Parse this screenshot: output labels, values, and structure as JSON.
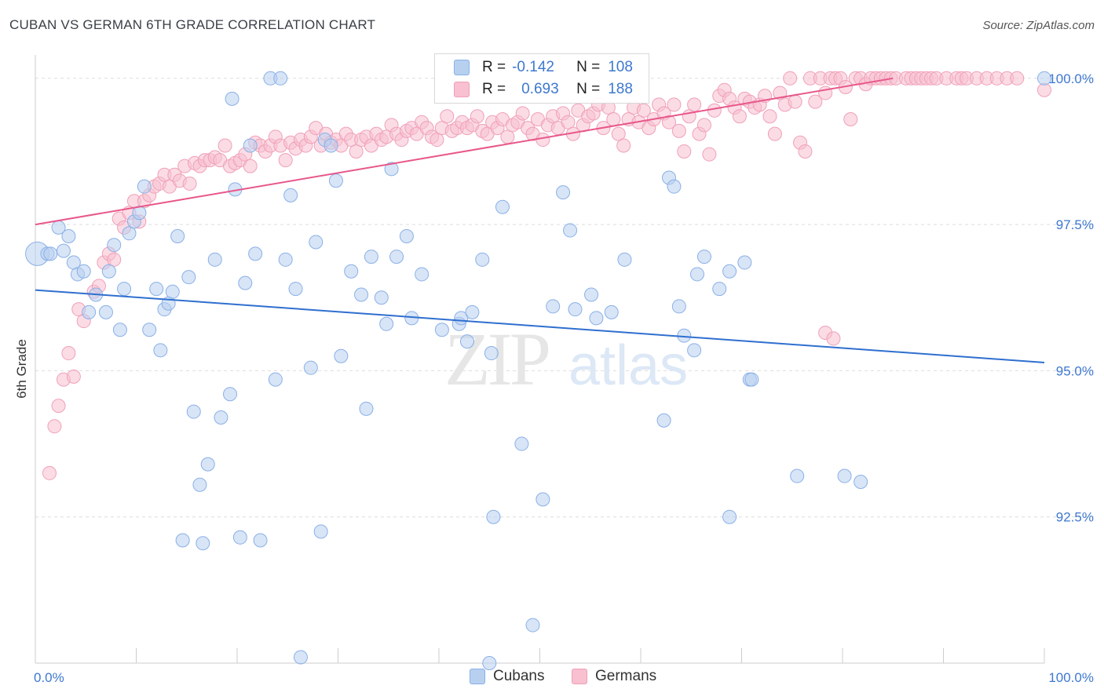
{
  "title": "CUBAN VS GERMAN 6TH GRADE CORRELATION CHART",
  "source": "Source: ZipAtlas.com",
  "watermark": {
    "zip": "ZIP",
    "atlas": "atlas"
  },
  "legend_stats": [
    {
      "r_label": "R =",
      "r_value": "-0.142",
      "n_label": "N =",
      "n_value": "108"
    },
    {
      "r_label": "R =",
      "r_value": "0.693",
      "n_label": "N =",
      "n_value": "188"
    }
  ],
  "bottom_legend": [
    "Cubans",
    "Germans"
  ],
  "colors": {
    "cubans_fill": "#b8d0f0",
    "cubans_stroke": "#8ab0e6",
    "cubans_line": "#2f6fcf",
    "germans_fill": "#f8c0d0",
    "germans_stroke": "#f0a0b8",
    "germans_line": "#e8578a",
    "tick_label": "#3e78d0",
    "grid": "#dddddd"
  },
  "chart_data": {
    "type": "scatter",
    "title": "CUBAN VS GERMAN 6TH GRADE CORRELATION CHART",
    "xlabel": "",
    "ylabel": "6th Grade",
    "xlim": [
      0,
      100
    ],
    "ylim": [
      90.0,
      100.4
    ],
    "x_tick_labels": [
      {
        "value": 0,
        "label": "0.0%"
      },
      {
        "value": 100,
        "label": "100.0%"
      }
    ],
    "y_tick_labels": [
      {
        "value": 100.0,
        "label": "100.0%"
      },
      {
        "value": 97.5,
        "label": "97.5%"
      },
      {
        "value": 95.0,
        "label": "95.0%"
      },
      {
        "value": 92.5,
        "label": "92.5%"
      }
    ],
    "grid": true,
    "legend_position": "top-center",
    "series": [
      {
        "name": "Cubans",
        "trend": {
          "x": [
            0,
            100
          ],
          "y": [
            96.38,
            95.14
          ]
        },
        "points": [
          [
            0.2,
            97.0
          ],
          [
            1.2,
            97.0
          ],
          [
            1.5,
            97.0
          ],
          [
            2.3,
            97.45
          ],
          [
            2.8,
            97.05
          ],
          [
            3.3,
            97.3
          ],
          [
            3.8,
            96.85
          ],
          [
            4.2,
            96.65
          ],
          [
            4.8,
            96.7
          ],
          [
            5.3,
            96.0
          ],
          [
            6.0,
            96.3
          ],
          [
            7.0,
            96.0
          ],
          [
            7.3,
            96.7
          ],
          [
            7.8,
            97.15
          ],
          [
            8.4,
            95.7
          ],
          [
            8.8,
            96.4
          ],
          [
            9.3,
            97.35
          ],
          [
            9.8,
            97.55
          ],
          [
            10.3,
            97.7
          ],
          [
            10.8,
            98.15
          ],
          [
            11.3,
            95.7
          ],
          [
            12.0,
            96.4
          ],
          [
            12.4,
            95.35
          ],
          [
            12.8,
            96.05
          ],
          [
            13.2,
            96.15
          ],
          [
            13.6,
            96.35
          ],
          [
            14.1,
            97.3
          ],
          [
            14.6,
            92.1
          ],
          [
            15.2,
            96.6
          ],
          [
            15.7,
            94.3
          ],
          [
            16.3,
            93.05
          ],
          [
            16.6,
            92.05
          ],
          [
            17.1,
            93.4
          ],
          [
            17.8,
            96.9
          ],
          [
            18.4,
            94.2
          ],
          [
            19.3,
            94.6
          ],
          [
            19.5,
            99.65
          ],
          [
            19.8,
            98.1
          ],
          [
            20.3,
            92.15
          ],
          [
            20.8,
            96.5
          ],
          [
            21.3,
            98.85
          ],
          [
            21.8,
            97.0
          ],
          [
            22.3,
            92.1
          ],
          [
            23.3,
            100.0
          ],
          [
            23.8,
            94.85
          ],
          [
            24.3,
            100.0
          ],
          [
            24.8,
            96.9
          ],
          [
            25.3,
            98.0
          ],
          [
            25.8,
            96.4
          ],
          [
            26.3,
            90.1
          ],
          [
            27.3,
            95.05
          ],
          [
            27.8,
            97.2
          ],
          [
            28.3,
            92.25
          ],
          [
            28.7,
            98.95
          ],
          [
            29.3,
            98.85
          ],
          [
            29.8,
            98.25
          ],
          [
            30.3,
            95.25
          ],
          [
            31.3,
            96.7
          ],
          [
            32.3,
            96.3
          ],
          [
            32.8,
            94.35
          ],
          [
            33.3,
            96.95
          ],
          [
            34.3,
            96.25
          ],
          [
            34.8,
            95.8
          ],
          [
            35.3,
            98.45
          ],
          [
            35.8,
            96.95
          ],
          [
            36.8,
            97.3
          ],
          [
            37.3,
            95.9
          ],
          [
            38.3,
            96.65
          ],
          [
            40.3,
            95.7
          ],
          [
            42.0,
            95.8
          ],
          [
            42.2,
            95.9
          ],
          [
            42.8,
            95.5
          ],
          [
            43.3,
            96.0
          ],
          [
            44.3,
            96.9
          ],
          [
            45.2,
            95.3
          ],
          [
            45.4,
            92.5
          ],
          [
            46.3,
            97.8
          ],
          [
            48.2,
            93.75
          ],
          [
            49.3,
            90.65
          ],
          [
            50.3,
            92.8
          ],
          [
            51.3,
            96.1
          ],
          [
            52.3,
            98.05
          ],
          [
            53.0,
            97.4
          ],
          [
            53.5,
            96.05
          ],
          [
            55.1,
            96.3
          ],
          [
            55.6,
            95.9
          ],
          [
            57.1,
            96.0
          ],
          [
            58.4,
            96.9
          ],
          [
            62.3,
            94.15
          ],
          [
            62.8,
            98.3
          ],
          [
            63.3,
            98.15
          ],
          [
            63.8,
            96.1
          ],
          [
            64.3,
            95.6
          ],
          [
            65.3,
            95.35
          ],
          [
            65.6,
            96.65
          ],
          [
            66.3,
            96.95
          ],
          [
            67.8,
            96.4
          ],
          [
            68.8,
            96.7
          ],
          [
            68.8,
            92.5
          ],
          [
            70.3,
            96.85
          ],
          [
            70.8,
            94.85
          ],
          [
            71.0,
            94.85
          ],
          [
            75.5,
            93.2
          ],
          [
            80.2,
            93.2
          ],
          [
            81.8,
            93.1
          ],
          [
            100.0,
            100.0
          ],
          [
            45.0,
            90.0
          ]
        ]
      },
      {
        "name": "Germans",
        "trend": {
          "x": [
            0,
            85
          ],
          "y": [
            97.5,
            100.0
          ]
        },
        "points": [
          [
            1.4,
            93.25
          ],
          [
            1.9,
            94.05
          ],
          [
            2.3,
            94.4
          ],
          [
            2.8,
            94.85
          ],
          [
            3.3,
            95.3
          ],
          [
            3.8,
            94.9
          ],
          [
            4.3,
            96.05
          ],
          [
            4.8,
            95.85
          ],
          [
            5.8,
            96.35
          ],
          [
            6.3,
            96.45
          ],
          [
            6.8,
            96.85
          ],
          [
            7.3,
            97.0
          ],
          [
            7.8,
            96.9
          ],
          [
            8.3,
            97.6
          ],
          [
            8.8,
            97.45
          ],
          [
            9.3,
            97.7
          ],
          [
            9.8,
            97.9
          ],
          [
            10.3,
            97.55
          ],
          [
            10.8,
            97.9
          ],
          [
            11.3,
            98.0
          ],
          [
            11.8,
            98.15
          ],
          [
            12.3,
            98.2
          ],
          [
            12.8,
            98.35
          ],
          [
            13.3,
            98.15
          ],
          [
            13.8,
            98.35
          ],
          [
            14.3,
            98.25
          ],
          [
            14.8,
            98.5
          ],
          [
            15.3,
            98.2
          ],
          [
            15.8,
            98.55
          ],
          [
            16.3,
            98.5
          ],
          [
            16.8,
            98.6
          ],
          [
            17.3,
            98.6
          ],
          [
            17.8,
            98.65
          ],
          [
            18.3,
            98.6
          ],
          [
            18.8,
            98.85
          ],
          [
            19.3,
            98.5
          ],
          [
            19.8,
            98.55
          ],
          [
            20.3,
            98.6
          ],
          [
            20.8,
            98.7
          ],
          [
            21.3,
            98.5
          ],
          [
            21.8,
            98.9
          ],
          [
            22.3,
            98.85
          ],
          [
            22.8,
            98.75
          ],
          [
            23.3,
            98.85
          ],
          [
            23.8,
            99.0
          ],
          [
            24.3,
            98.85
          ],
          [
            24.8,
            98.6
          ],
          [
            25.3,
            98.9
          ],
          [
            25.8,
            98.8
          ],
          [
            26.3,
            98.95
          ],
          [
            26.8,
            98.85
          ],
          [
            27.3,
            99.0
          ],
          [
            27.8,
            99.15
          ],
          [
            28.3,
            98.85
          ],
          [
            28.8,
            99.05
          ],
          [
            29.3,
            98.9
          ],
          [
            29.8,
            98.95
          ],
          [
            30.3,
            98.85
          ],
          [
            30.8,
            99.05
          ],
          [
            31.3,
            98.95
          ],
          [
            31.8,
            98.75
          ],
          [
            32.3,
            98.95
          ],
          [
            32.8,
            99.0
          ],
          [
            33.3,
            98.85
          ],
          [
            33.8,
            99.05
          ],
          [
            34.3,
            98.95
          ],
          [
            34.8,
            99.0
          ],
          [
            35.3,
            99.2
          ],
          [
            35.8,
            99.05
          ],
          [
            36.3,
            98.95
          ],
          [
            36.8,
            99.1
          ],
          [
            37.3,
            99.15
          ],
          [
            37.8,
            99.05
          ],
          [
            38.3,
            99.25
          ],
          [
            38.8,
            99.15
          ],
          [
            39.3,
            99.0
          ],
          [
            39.8,
            98.95
          ],
          [
            40.3,
            99.15
          ],
          [
            40.8,
            99.35
          ],
          [
            41.3,
            99.1
          ],
          [
            41.8,
            99.15
          ],
          [
            42.3,
            99.25
          ],
          [
            42.8,
            99.15
          ],
          [
            43.3,
            99.2
          ],
          [
            43.8,
            99.35
          ],
          [
            44.3,
            99.1
          ],
          [
            44.8,
            99.05
          ],
          [
            45.3,
            99.25
          ],
          [
            45.8,
            99.15
          ],
          [
            46.3,
            99.3
          ],
          [
            46.8,
            99.0
          ],
          [
            47.3,
            99.2
          ],
          [
            47.8,
            99.25
          ],
          [
            48.3,
            99.4
          ],
          [
            48.8,
            99.15
          ],
          [
            49.3,
            99.05
          ],
          [
            49.8,
            99.3
          ],
          [
            50.3,
            98.95
          ],
          [
            50.8,
            99.2
          ],
          [
            51.3,
            99.35
          ],
          [
            51.8,
            99.15
          ],
          [
            52.3,
            99.4
          ],
          [
            52.8,
            99.25
          ],
          [
            53.3,
            99.05
          ],
          [
            53.8,
            99.45
          ],
          [
            54.3,
            99.2
          ],
          [
            54.8,
            99.35
          ],
          [
            55.3,
            99.4
          ],
          [
            55.8,
            99.55
          ],
          [
            56.3,
            99.15
          ],
          [
            56.8,
            99.5
          ],
          [
            57.3,
            99.3
          ],
          [
            57.8,
            99.05
          ],
          [
            58.3,
            98.85
          ],
          [
            58.8,
            99.3
          ],
          [
            59.3,
            99.5
          ],
          [
            59.8,
            99.25
          ],
          [
            60.3,
            99.45
          ],
          [
            60.8,
            99.15
          ],
          [
            61.3,
            99.3
          ],
          [
            61.8,
            99.55
          ],
          [
            62.3,
            99.4
          ],
          [
            62.8,
            99.25
          ],
          [
            63.3,
            99.55
          ],
          [
            63.8,
            99.1
          ],
          [
            64.3,
            98.75
          ],
          [
            64.8,
            99.35
          ],
          [
            65.3,
            99.55
          ],
          [
            65.8,
            99.05
          ],
          [
            66.3,
            99.2
          ],
          [
            66.8,
            98.7
          ],
          [
            67.3,
            99.45
          ],
          [
            67.8,
            99.7
          ],
          [
            68.3,
            99.8
          ],
          [
            68.8,
            99.65
          ],
          [
            69.3,
            99.5
          ],
          [
            69.8,
            99.35
          ],
          [
            70.3,
            99.65
          ],
          [
            70.8,
            99.6
          ],
          [
            71.3,
            99.5
          ],
          [
            71.8,
            99.55
          ],
          [
            72.3,
            99.7
          ],
          [
            72.8,
            99.35
          ],
          [
            73.3,
            99.05
          ],
          [
            73.8,
            99.75
          ],
          [
            74.3,
            99.55
          ],
          [
            74.8,
            100.0
          ],
          [
            75.3,
            99.6
          ],
          [
            75.8,
            98.9
          ],
          [
            76.3,
            98.75
          ],
          [
            76.8,
            100.0
          ],
          [
            77.3,
            99.6
          ],
          [
            77.8,
            100.0
          ],
          [
            78.3,
            99.75
          ],
          [
            78.8,
            100.0
          ],
          [
            79.3,
            100.0
          ],
          [
            79.8,
            100.0
          ],
          [
            80.3,
            99.85
          ],
          [
            80.8,
            99.3
          ],
          [
            81.3,
            100.0
          ],
          [
            81.8,
            100.0
          ],
          [
            82.3,
            99.9
          ],
          [
            82.8,
            100.0
          ],
          [
            83.3,
            100.0
          ],
          [
            83.8,
            100.0
          ],
          [
            84.3,
            100.0
          ],
          [
            84.8,
            100.0
          ],
          [
            85.3,
            100.0
          ],
          [
            86.3,
            100.0
          ],
          [
            86.8,
            100.0
          ],
          [
            87.3,
            100.0
          ],
          [
            87.8,
            100.0
          ],
          [
            88.3,
            100.0
          ],
          [
            88.8,
            100.0
          ],
          [
            89.3,
            100.0
          ],
          [
            90.3,
            100.0
          ],
          [
            91.3,
            100.0
          ],
          [
            91.8,
            100.0
          ],
          [
            92.3,
            100.0
          ],
          [
            93.3,
            100.0
          ],
          [
            94.3,
            100.0
          ],
          [
            95.3,
            100.0
          ],
          [
            96.3,
            100.0
          ],
          [
            97.3,
            100.0
          ],
          [
            100.0,
            99.8
          ],
          [
            78.3,
            95.65
          ],
          [
            79.1,
            95.55
          ]
        ]
      }
    ]
  }
}
